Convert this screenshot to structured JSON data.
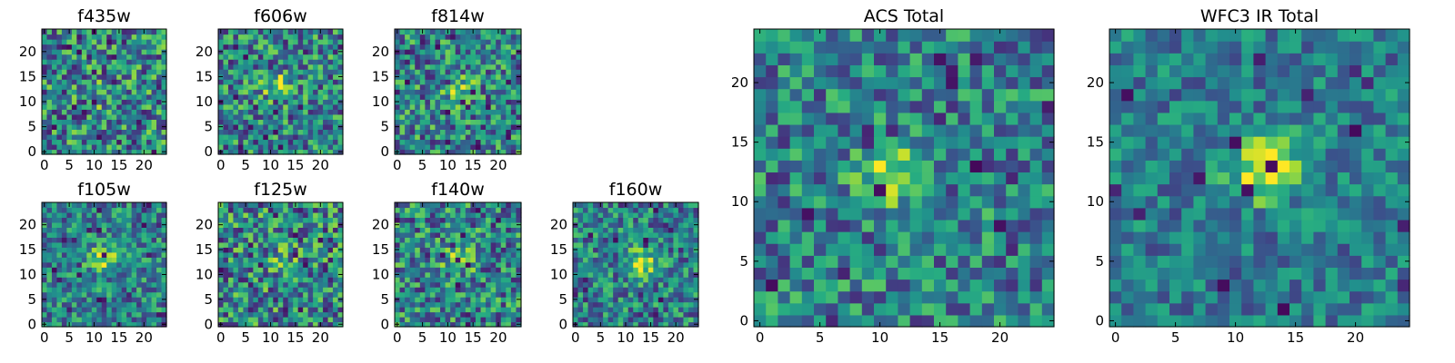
{
  "chart_data": [
    {
      "type": "heatmap",
      "title": "f435w",
      "xticks": [
        "0",
        "5",
        "10",
        "15",
        "20"
      ],
      "yticks": [
        "0",
        "5",
        "10",
        "15",
        "20"
      ],
      "grid_size": 25,
      "extent": [
        -0.5,
        24.5
      ],
      "colormap": "viridis",
      "peak": [
        10,
        11
      ],
      "peak_strength": 0.15,
      "noise": 0.75,
      "seed": 11
    },
    {
      "type": "heatmap",
      "title": "f606w",
      "xticks": [
        "0",
        "5",
        "10",
        "15",
        "20"
      ],
      "yticks": [
        "0",
        "5",
        "10",
        "15",
        "20"
      ],
      "grid_size": 25,
      "extent": [
        -0.5,
        24.5
      ],
      "colormap": "viridis",
      "peak": [
        11.5,
        13
      ],
      "peak_strength": 0.35,
      "noise": 0.7,
      "seed": 23
    },
    {
      "type": "heatmap",
      "title": "f814w",
      "xticks": [
        "0",
        "5",
        "10",
        "15",
        "20"
      ],
      "yticks": [
        "0",
        "5",
        "10",
        "15",
        "20"
      ],
      "grid_size": 25,
      "extent": [
        -0.5,
        24.5
      ],
      "colormap": "viridis",
      "peak": [
        12,
        12.5
      ],
      "peak_strength": 0.35,
      "noise": 0.7,
      "seed": 37
    },
    {
      "type": "heatmap",
      "title": "f105w",
      "xticks": [
        "0",
        "5",
        "10",
        "15",
        "20"
      ],
      "yticks": [
        "0",
        "5",
        "10",
        "15",
        "20"
      ],
      "grid_size": 25,
      "extent": [
        -0.5,
        24.5
      ],
      "colormap": "viridis",
      "peak": [
        12,
        13.5
      ],
      "peak_strength": 0.45,
      "noise": 0.6,
      "seed": 41
    },
    {
      "type": "heatmap",
      "title": "f125w",
      "xticks": [
        "0",
        "5",
        "10",
        "15",
        "20"
      ],
      "yticks": [
        "0",
        "5",
        "10",
        "15",
        "20"
      ],
      "grid_size": 25,
      "extent": [
        -0.5,
        24.5
      ],
      "colormap": "viridis",
      "peak": [
        12,
        13
      ],
      "peak_strength": 0.2,
      "noise": 0.75,
      "seed": 53
    },
    {
      "type": "heatmap",
      "title": "f140w",
      "xticks": [
        "0",
        "5",
        "10",
        "15",
        "20"
      ],
      "yticks": [
        "0",
        "5",
        "10",
        "15",
        "20"
      ],
      "grid_size": 25,
      "extent": [
        -0.5,
        24.5
      ],
      "colormap": "viridis",
      "peak": [
        12,
        13
      ],
      "peak_strength": 0.3,
      "noise": 0.7,
      "seed": 67
    },
    {
      "type": "heatmap",
      "title": "f160w",
      "xticks": [
        "0",
        "5",
        "10",
        "15",
        "20"
      ],
      "yticks": [
        "0",
        "5",
        "10",
        "15",
        "20"
      ],
      "grid_size": 25,
      "extent": [
        -0.5,
        24.5
      ],
      "colormap": "viridis",
      "peak": [
        13.5,
        12.5
      ],
      "peak_strength": 0.45,
      "noise": 0.6,
      "seed": 79
    },
    {
      "type": "heatmap",
      "title": "ACS Total",
      "xticks": [
        "0",
        "5",
        "10",
        "15",
        "20"
      ],
      "yticks": [
        "0",
        "5",
        "10",
        "15",
        "20"
      ],
      "grid_size": 25,
      "extent": [
        -0.5,
        24.5
      ],
      "colormap": "viridis",
      "peak": [
        11,
        12.5
      ],
      "peak_strength": 0.45,
      "noise": 0.6,
      "seed": 97
    },
    {
      "type": "heatmap",
      "title": "WFC3 IR Total",
      "xticks": [
        "0",
        "5",
        "10",
        "15",
        "20"
      ],
      "yticks": [
        "0",
        "5",
        "10",
        "15",
        "20"
      ],
      "grid_size": 25,
      "extent": [
        -0.5,
        24.5
      ],
      "colormap": "viridis",
      "peak": [
        12.5,
        13
      ],
      "peak_strength": 0.6,
      "noise": 0.45,
      "seed": 113
    }
  ]
}
